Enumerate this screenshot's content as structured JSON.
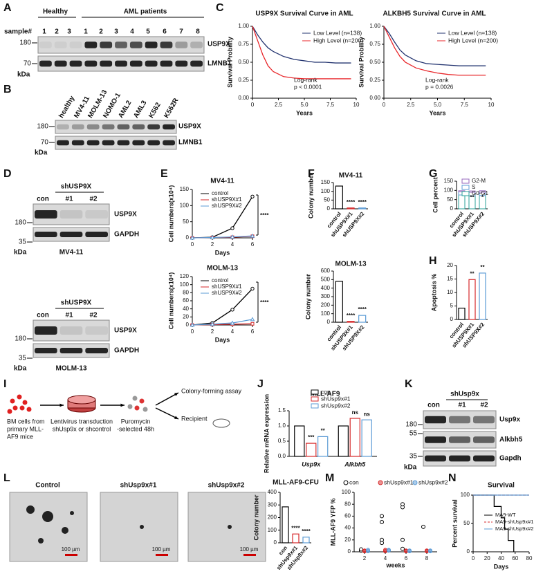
{
  "A": {
    "letter": "A",
    "groups": [
      "Healthy",
      "AML patients"
    ],
    "sample_label": "sample#",
    "samples": [
      "1",
      "2",
      "3",
      "1",
      "2",
      "3",
      "4",
      "5",
      "6",
      "7",
      "8"
    ],
    "markers": [
      "180",
      "70"
    ],
    "kda": "kDa",
    "proteins": [
      "USP9X",
      "LMNB1"
    ]
  },
  "B": {
    "letter": "B",
    "lanes": [
      "healthy",
      "MV4-11",
      "MOLM-13",
      "NOMO-1",
      "AML2",
      "AML3",
      "K562",
      "K562R"
    ],
    "markers": [
      "180",
      "70"
    ],
    "kda": "kDa",
    "proteins": [
      "USP9X",
      "LMNB1"
    ]
  },
  "C": {
    "letter": "C",
    "charts": [
      {
        "type": "line",
        "title": "USP9X Survival Curve in AML",
        "ylabel": "Survival Probility",
        "xlabel": "Years",
        "xlim": [
          0,
          10
        ],
        "ylim": [
          0,
          1
        ],
        "xticks": [
          0,
          2.5,
          {
            "value": 5,
            "label": "5.0"
          },
          7.5,
          10
        ],
        "yticks": [
          {
            "value": 0,
            "label": "0.00"
          },
          0.25,
          {
            "value": 0.5,
            "label": "0.50"
          },
          0.75,
          {
            "value": 1,
            "label": "1.00"
          }
        ],
        "annotations": [
          "Log-rank",
          "p < 0.0001"
        ],
        "x": [
          0,
          0.5,
          1,
          1.5,
          2,
          3,
          4,
          5,
          6,
          7,
          8,
          9,
          9.5
        ],
        "series": [
          {
            "name": "Low Level (n=138)",
            "color": "#22336f",
            "values": [
              1,
              0.88,
              0.78,
              0.7,
              0.65,
              0.58,
              0.54,
              0.52,
              0.5,
              0.5,
              0.49,
              0.49,
              0.49
            ]
          },
          {
            "name": "High Level (n=200)",
            "color": "#e8262a",
            "values": [
              1,
              0.8,
              0.6,
              0.45,
              0.37,
              0.3,
              0.28,
              0.27,
              0.27,
              0.27,
              0.27,
              0.27,
              0.27
            ]
          }
        ]
      },
      {
        "type": "line",
        "title": "ALKBH5 Survival Curve in AML",
        "ylabel": "Survival Probility",
        "xlabel": "Years",
        "xlim": [
          0,
          10
        ],
        "ylim": [
          0,
          1
        ],
        "xticks": [
          0,
          2.5,
          {
            "value": 5,
            "label": "5.0"
          },
          7.5,
          10
        ],
        "yticks": [
          {
            "value": 0,
            "label": "0.00"
          },
          0.25,
          {
            "value": 0.5,
            "label": "0.50"
          },
          0.75,
          {
            "value": 1,
            "label": "1.00"
          }
        ],
        "annotations": [
          "Log-rank",
          "p = 0.0026"
        ],
        "x": [
          0,
          0.5,
          1,
          1.5,
          2,
          3,
          4,
          5,
          6,
          7,
          8,
          9,
          9.5
        ],
        "series": [
          {
            "name": "Low Level (n=138)",
            "color": "#22336f",
            "values": [
              1,
              0.9,
              0.78,
              0.67,
              0.6,
              0.52,
              0.48,
              0.47,
              0.46,
              0.45,
              0.45,
              0.45,
              0.45
            ]
          },
          {
            "name": "High Level (n=200)",
            "color": "#e8262a",
            "values": [
              1,
              0.85,
              0.7,
              0.58,
              0.5,
              0.42,
              0.38,
              0.35,
              0.33,
              0.32,
              0.32,
              0.32,
              0.32
            ]
          }
        ]
      }
    ]
  },
  "D": {
    "letter": "D",
    "blots": [
      {
        "group": "shUSP9X",
        "lanes": [
          "con",
          "#1",
          "#2"
        ],
        "proteins": [
          "USP9X",
          "GAPDH"
        ],
        "markers": [
          "180",
          "35"
        ],
        "kda": "kDa",
        "cell": "MV4-11"
      },
      {
        "group": "shUSP9X",
        "lanes": [
          "con",
          "#1",
          "#2"
        ],
        "proteins": [
          "USP9X",
          "GAPDH"
        ],
        "markers": [
          "180",
          "35"
        ],
        "kda": "kDa",
        "cell": "MOLM-13"
      }
    ]
  },
  "E": {
    "letter": "E",
    "charts": [
      {
        "type": "line",
        "title": "MV4-11",
        "ylabel": "Cell numbers(x10⁴)",
        "xlabel": "Days",
        "xlim": [
          0,
          6
        ],
        "ylim": [
          0,
          150
        ],
        "xticks": [
          0,
          2,
          4,
          6
        ],
        "yticks": [
          0,
          50,
          100,
          150
        ],
        "annotations": [
          "****"
        ],
        "x": [
          0,
          2,
          4,
          6
        ],
        "series": [
          {
            "name": "control",
            "color": "#000000",
            "values": [
              0,
              2,
              30,
              128
            ]
          },
          {
            "name": "shUSP9X#1",
            "color": "#d62728",
            "values": [
              0,
              1,
              2,
              5
            ]
          },
          {
            "name": "shUSP9X#2",
            "color": "#5b9bd5",
            "values": [
              0,
              1,
              3,
              6
            ]
          }
        ]
      },
      {
        "type": "line",
        "title": "MOLM-13",
        "ylabel": "Cell numbers(x10⁴)",
        "xlabel": "Days",
        "xlim": [
          0,
          6
        ],
        "ylim": [
          0,
          120
        ],
        "xticks": [
          0,
          2,
          4,
          6
        ],
        "yticks": [
          0,
          20,
          40,
          60,
          80,
          100,
          120
        ],
        "annotations": [
          "****"
        ],
        "x": [
          0,
          2,
          4,
          6
        ],
        "series": [
          {
            "name": "control",
            "color": "#000000",
            "values": [
              0,
              5,
              38,
              90
            ]
          },
          {
            "name": "shUSP9X#1",
            "color": "#d62728",
            "values": [
              0,
              1,
              2,
              3
            ]
          },
          {
            "name": "shUSP9X#2",
            "color": "#5b9bd5",
            "values": [
              0,
              2,
              5,
              14
            ]
          }
        ]
      }
    ]
  },
  "F": {
    "letter": "F",
    "charts": [
      {
        "type": "bar",
        "title": "MV4-11",
        "ylabel": "Colony number",
        "categories": [
          "control",
          "shUSP9X#1",
          "shUSP9X#2"
        ],
        "values": [
          130,
          5,
          5
        ],
        "colors": [
          "#000000",
          "#d62728",
          "#5b9bd5"
        ],
        "ylim": [
          0,
          150
        ],
        "yticks": [
          0,
          50,
          100,
          150
        ],
        "annotations": [
          "****",
          "****"
        ]
      },
      {
        "type": "bar",
        "title": "MOLM-13",
        "ylabel": "Colony number",
        "categories": [
          "control",
          "shUSP9X#1",
          "shUSP9X#2"
        ],
        "values": [
          480,
          10,
          80
        ],
        "colors": [
          "#000000",
          "#d62728",
          "#5b9bd5"
        ],
        "ylim": [
          0,
          600
        ],
        "yticks": [
          0,
          100,
          200,
          300,
          400,
          500,
          600
        ],
        "annotations": [
          "****",
          "****"
        ]
      }
    ]
  },
  "G": {
    "letter": "G",
    "type": "stacked-bar",
    "ylabel": "Cell percent",
    "categories": [
      "control",
      "shUSP9X#1",
      "shUSP9X#2"
    ],
    "ylim": [
      0,
      150
    ],
    "yticks": [
      0,
      50,
      100,
      150
    ],
    "annotations": [
      "**",
      "*"
    ],
    "series": [
      {
        "name": "G0-G1",
        "color": "#2aa198",
        "values": [
          75,
          70,
          72
        ]
      },
      {
        "name": "S",
        "color": "#5b9bd5",
        "values": [
          17,
          20,
          18
        ]
      },
      {
        "name": "G2-M",
        "color": "#9467bd",
        "values": [
          6,
          7,
          8
        ]
      }
    ]
  },
  "H": {
    "letter": "H",
    "type": "bar",
    "ylabel": "Apoptosis %",
    "categories": [
      "control",
      "shUSP9X#1",
      "shUSP9X#2"
    ],
    "values": [
      4.2,
      14.8,
      17.2
    ],
    "colors": [
      "#000000",
      "#d62728",
      "#5b9bd5"
    ],
    "ylim": [
      0,
      20
    ],
    "yticks": [
      0,
      5,
      10,
      15,
      20
    ],
    "annotations": [
      "**",
      "**"
    ]
  },
  "I": {
    "letter": "I",
    "source": [
      "BM cells from",
      "primary MLL-",
      "AF9 mice"
    ],
    "transduction": [
      "Lentivirus transduction",
      "shUsp9x or shcontrol"
    ],
    "selection": [
      "Puromycin",
      "-selected 48h"
    ],
    "outputs": [
      "Colony-forming assay",
      "Recipient"
    ]
  },
  "J": {
    "letter": "J",
    "type": "grouped-bar",
    "title": "MLL-AF9",
    "ylabel": "Relative mRNA expression",
    "categories": [
      "Usp9x",
      "Alkbh5"
    ],
    "ylim": [
      0,
      1.5
    ],
    "yticks": [
      {
        "value": 0,
        "label": "0.0"
      },
      0.5,
      {
        "value": 1,
        "label": "1.0"
      },
      1.5
    ],
    "annotations": [
      "***",
      "**",
      "ns",
      "ns"
    ],
    "series": [
      {
        "name": "con",
        "color": "#000000",
        "values": [
          1.0,
          1.0
        ]
      },
      {
        "name": "shUsp9x#1",
        "color": "#d62728",
        "values": [
          0.43,
          1.25
        ]
      },
      {
        "name": "shUsp9x#2",
        "color": "#5b9bd5",
        "values": [
          0.65,
          1.2
        ]
      }
    ]
  },
  "K": {
    "letter": "K",
    "group": "shUsp9x",
    "lanes": [
      "con",
      "#1",
      "#2"
    ],
    "proteins": [
      "Usp9x",
      "Alkbh5",
      "Gapdh"
    ],
    "markers": [
      "180",
      "55",
      "35"
    ],
    "kda": "kDa"
  },
  "L": {
    "letter": "L",
    "images": [
      "Control",
      "shUsp9x#1",
      "shUsp9x#2"
    ],
    "scale_bars": [
      "100 µm",
      "100 µm",
      "100 µm"
    ],
    "chart": {
      "type": "bar",
      "title": "MLL-AF9-CFU",
      "ylabel": "Colony number",
      "categories": [
        "con",
        "shUsp9x#1",
        "shUsp9x#2"
      ],
      "values": [
        285,
        70,
        45
      ],
      "colors": [
        "#000000",
        "#d62728",
        "#5b9bd5"
      ],
      "ylim": [
        0,
        400
      ],
      "yticks": [
        0,
        100,
        200,
        300,
        400
      ],
      "annotations": [
        "****",
        "****"
      ]
    }
  },
  "M": {
    "letter": "M",
    "type": "scatter",
    "ylabel": "MLL-AF9 YFP %",
    "xlabel": "weeks",
    "xlim": [
      1,
      9
    ],
    "ylim": [
      0,
      100
    ],
    "xticks": [
      2,
      4,
      6,
      8
    ],
    "yticks": [
      0,
      20,
      40,
      60,
      80,
      100
    ],
    "series": [
      {
        "name": "con",
        "color": "#000000",
        "x": [
          2,
          2,
          4,
          4,
          4,
          4,
          6,
          6,
          6,
          6,
          8
        ],
        "values": [
          2,
          4,
          15,
          20,
          50,
          60,
          5,
          20,
          75,
          80,
          42
        ]
      },
      {
        "name": "shUsp9x#1",
        "color": "#d62728",
        "x": [
          2,
          2,
          4,
          4,
          6,
          6,
          8,
          8
        ],
        "values": [
          1,
          2,
          1,
          3,
          1,
          2,
          1,
          2
        ]
      },
      {
        "name": "shUsp9x#2",
        "color": "#5b9bd5",
        "x": [
          2,
          2,
          4,
          4,
          6,
          6,
          8,
          8
        ],
        "values": [
          1,
          3,
          2,
          3,
          1,
          2,
          2,
          1
        ]
      }
    ]
  },
  "N": {
    "letter": "N",
    "type": "line",
    "step": true,
    "title": "Survival",
    "ylabel": "Percent survival",
    "xlabel": "Days",
    "xlim": [
      0,
      80
    ],
    "ylim": [
      0,
      100
    ],
    "xticks": [
      0,
      20,
      40,
      60,
      80
    ],
    "yticks": [
      0,
      50,
      100
    ],
    "series": [
      {
        "name": "MA9-WT",
        "color": "#000000",
        "x": [
          0,
          30,
          40,
          45,
          50,
          58
        ],
        "values": [
          100,
          80,
          60,
          40,
          20,
          0
        ]
      },
      {
        "name": "MA9-shUsp9x#1",
        "color": "#d62728",
        "x": [
          0,
          80
        ],
        "values": [
          100,
          100
        ]
      },
      {
        "name": "MA9-shUsp9x#2",
        "color": "#5b9bd5",
        "x": [
          0,
          80
        ],
        "values": [
          100,
          100
        ]
      }
    ]
  }
}
